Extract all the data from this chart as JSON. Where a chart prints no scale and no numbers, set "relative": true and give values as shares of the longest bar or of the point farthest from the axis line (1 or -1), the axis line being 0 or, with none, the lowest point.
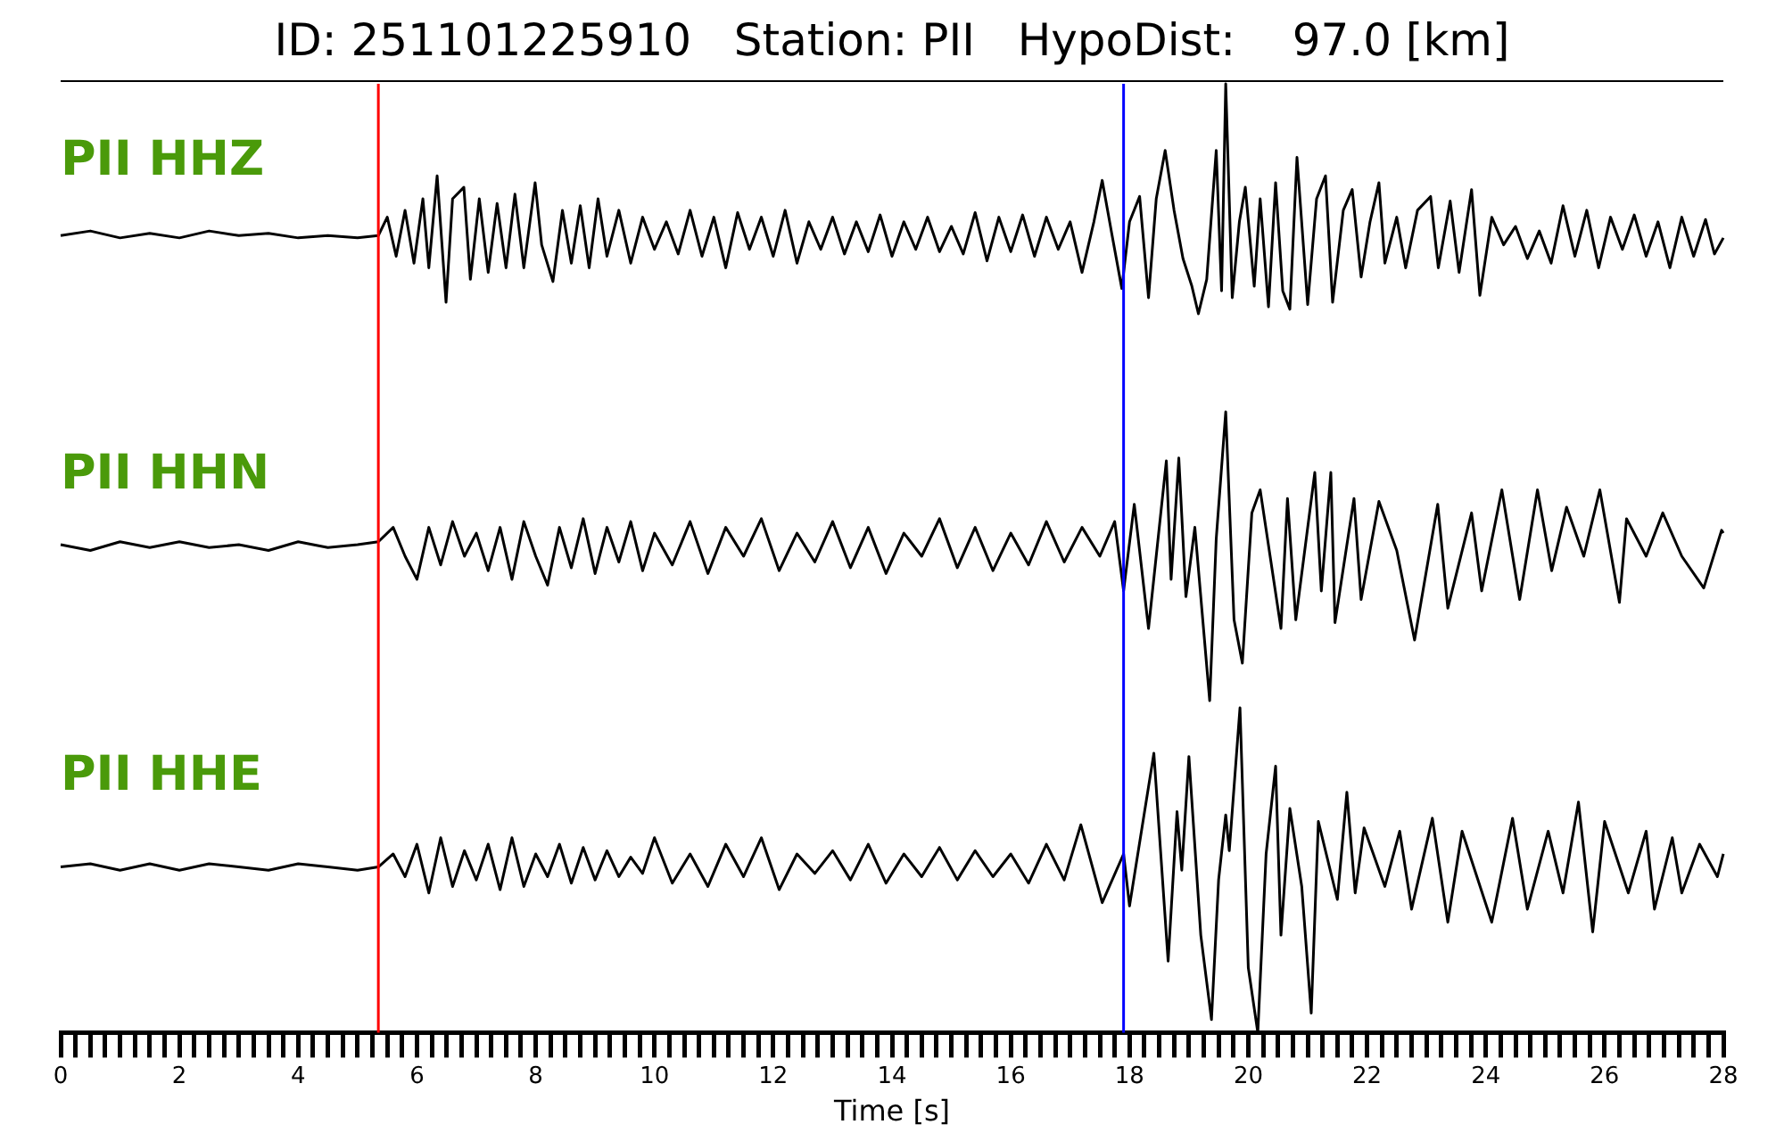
{
  "chart_data": [
    {
      "type": "line",
      "title": "ID: 251101225910   Station: PII   HypoDist:    97.0 [km]",
      "annotations": [
        "PII HHZ"
      ],
      "relative": true,
      "tick_labels": false,
      "xlim": [
        0,
        28
      ],
      "ref_lines": [
        {
          "axis": "x",
          "value": 5.35,
          "color": "#ff0000"
        },
        {
          "axis": "x",
          "value": 17.9,
          "color": "#0000ff"
        }
      ],
      "series": [
        {
          "color": "#000000",
          "x": [
            0,
            0.5,
            1,
            1.5,
            2,
            2.5,
            3,
            3.5,
            4,
            4.5,
            5,
            5.35,
            5.5,
            5.65,
            5.8,
            5.95,
            6.1,
            6.2,
            6.34,
            6.49,
            6.6,
            6.79,
            6.9,
            7.05,
            7.2,
            7.35,
            7.5,
            7.65,
            7.8,
            7.99,
            8.1,
            8.29,
            8.45,
            8.6,
            8.75,
            8.9,
            9.05,
            9.2,
            9.4,
            9.6,
            9.8,
            10,
            10.2,
            10.4,
            10.6,
            10.8,
            11,
            11.2,
            11.4,
            11.6,
            11.8,
            12,
            12.2,
            12.4,
            12.6,
            12.8,
            13,
            13.2,
            13.4,
            13.6,
            13.8,
            14,
            14.2,
            14.4,
            14.6,
            14.8,
            15,
            15.2,
            15.4,
            15.6,
            15.8,
            16,
            16.2,
            16.4,
            16.6,
            16.8,
            17,
            17.2,
            17.4,
            17.54,
            17.7,
            17.87,
            18,
            18.17,
            18.32,
            18.45,
            18.6,
            18.75,
            18.9,
            19.05,
            19.16,
            19.3,
            19.46,
            19.55,
            19.62,
            19.73,
            19.85,
            19.95,
            20.1,
            20.2,
            20.34,
            20.46,
            20.58,
            20.7,
            20.82,
            21,
            21.15,
            21.3,
            21.42,
            21.6,
            21.75,
            21.9,
            22.05,
            22.2,
            22.3,
            22.5,
            22.65,
            22.85,
            23.07,
            23.2,
            23.4,
            23.55,
            23.76,
            23.9,
            24.1,
            24.3,
            24.5,
            24.7,
            24.9,
            25.1,
            25.3,
            25.5,
            25.7,
            25.9,
            26.1,
            26.3,
            26.5,
            26.7,
            26.9,
            27.1,
            27.3,
            27.5,
            27.7,
            27.85,
            28
          ],
          "values": [
            0.34,
            0.36,
            0.33,
            0.35,
            0.33,
            0.36,
            0.34,
            0.35,
            0.33,
            0.34,
            0.33,
            0.34,
            0.42,
            0.25,
            0.45,
            0.22,
            0.5,
            0.2,
            0.6,
            0.05,
            0.5,
            0.55,
            0.15,
            0.5,
            0.18,
            0.48,
            0.2,
            0.52,
            0.2,
            0.57,
            0.3,
            0.14,
            0.45,
            0.22,
            0.47,
            0.2,
            0.5,
            0.25,
            0.45,
            0.22,
            0.42,
            0.28,
            0.4,
            0.26,
            0.45,
            0.25,
            0.42,
            0.2,
            0.44,
            0.28,
            0.42,
            0.25,
            0.45,
            0.22,
            0.4,
            0.28,
            0.42,
            0.26,
            0.4,
            0.27,
            0.43,
            0.25,
            0.4,
            0.28,
            0.42,
            0.27,
            0.38,
            0.26,
            0.44,
            0.23,
            0.42,
            0.27,
            0.43,
            0.25,
            0.42,
            0.28,
            0.4,
            0.18,
            0.4,
            0.58,
            0.35,
            0.11,
            0.4,
            0.51,
            0.07,
            0.5,
            0.71,
            0.45,
            0.24,
            0.12,
            0,
            0.15,
            0.71,
            0.1,
            1,
            0.07,
            0.4,
            0.55,
            0.12,
            0.5,
            0.03,
            0.57,
            0.1,
            0.02,
            0.68,
            0.04,
            0.5,
            0.6,
            0.05,
            0.45,
            0.54,
            0.16,
            0.4,
            0.57,
            0.22,
            0.42,
            0.2,
            0.45,
            0.51,
            0.2,
            0.49,
            0.18,
            0.54,
            0.08,
            0.42,
            0.3,
            0.38,
            0.24,
            0.36,
            0.22,
            0.47,
            0.25,
            0.45,
            0.2,
            0.42,
            0.28,
            0.43,
            0.25,
            0.4,
            0.2,
            0.42,
            0.25,
            0.41,
            0.26,
            0.33
          ]
        }
      ]
    },
    {
      "type": "line",
      "annotations": [
        "PII HHN"
      ],
      "relative": true,
      "tick_labels": false,
      "xlim": [
        0,
        28
      ],
      "ref_lines": [
        {
          "axis": "x",
          "value": 5.35,
          "color": "#ff0000"
        },
        {
          "axis": "x",
          "value": 17.9,
          "color": "#0000ff"
        }
      ],
      "series": [
        {
          "color": "#000000",
          "x": [
            0,
            0.5,
            1,
            1.5,
            2,
            2.5,
            3,
            3.5,
            4,
            4.5,
            5,
            5.35,
            5.6,
            5.8,
            6,
            6.2,
            6.4,
            6.6,
            6.8,
            7,
            7.2,
            7.4,
            7.6,
            7.8,
            8,
            8.2,
            8.4,
            8.6,
            8.8,
            9,
            9.2,
            9.4,
            9.6,
            9.8,
            10,
            10.3,
            10.6,
            10.9,
            11.2,
            11.5,
            11.8,
            12.1,
            12.4,
            12.7,
            13,
            13.3,
            13.6,
            13.9,
            14.2,
            14.5,
            14.8,
            15.1,
            15.4,
            15.7,
            16,
            16.3,
            16.6,
            16.9,
            17.2,
            17.5,
            17.75,
            17.9,
            18.08,
            18.32,
            18.62,
            18.7,
            18.83,
            18.95,
            19.1,
            19.35,
            19.46,
            19.62,
            19.76,
            19.9,
            20.06,
            20.2,
            20.55,
            20.66,
            20.8,
            21.12,
            21.23,
            21.39,
            21.46,
            21.78,
            21.9,
            22.2,
            22.5,
            22.8,
            23.19,
            23.36,
            23.76,
            23.93,
            24.27,
            24.57,
            24.87,
            25.11,
            25.36,
            25.65,
            25.92,
            26.25,
            26.37,
            26.7,
            26.98,
            27.3,
            27.67,
            27.97,
            28
          ],
          "values": [
            0.54,
            0.52,
            0.55,
            0.53,
            0.55,
            0.53,
            0.54,
            0.52,
            0.55,
            0.53,
            0.54,
            0.55,
            0.6,
            0.5,
            0.42,
            0.6,
            0.47,
            0.62,
            0.5,
            0.58,
            0.45,
            0.6,
            0.42,
            0.62,
            0.5,
            0.4,
            0.6,
            0.46,
            0.63,
            0.44,
            0.6,
            0.48,
            0.62,
            0.45,
            0.58,
            0.47,
            0.62,
            0.44,
            0.6,
            0.5,
            0.63,
            0.45,
            0.58,
            0.48,
            0.62,
            0.46,
            0.6,
            0.44,
            0.58,
            0.5,
            0.63,
            0.46,
            0.6,
            0.45,
            0.58,
            0.47,
            0.62,
            0.48,
            0.6,
            0.5,
            0.62,
            0.38,
            0.68,
            0.25,
            0.83,
            0.42,
            0.84,
            0.36,
            0.6,
            0,
            0.56,
            1,
            0.28,
            0.13,
            0.65,
            0.73,
            0.25,
            0.7,
            0.28,
            0.79,
            0.38,
            0.79,
            0.27,
            0.7,
            0.35,
            0.69,
            0.52,
            0.21,
            0.68,
            0.32,
            0.65,
            0.38,
            0.73,
            0.35,
            0.73,
            0.45,
            0.67,
            0.5,
            0.73,
            0.34,
            0.63,
            0.5,
            0.65,
            0.5,
            0.39,
            0.59,
            0.58
          ]
        }
      ]
    },
    {
      "type": "line",
      "annotations": [
        "PII HHE"
      ],
      "relative": true,
      "xlabel": "Time [s]",
      "xlim": [
        0,
        28
      ],
      "xticks": [
        0,
        {
          "value": 0.25,
          "label": null
        },
        {
          "value": 0.5,
          "label": null
        },
        {
          "value": 0.75,
          "label": null
        },
        {
          "value": 1,
          "label": null
        },
        {
          "value": 1.25,
          "label": null
        },
        {
          "value": 1.5,
          "label": null
        },
        {
          "value": 1.75,
          "label": null
        },
        2,
        {
          "value": 2.25,
          "label": null
        },
        {
          "value": 2.5,
          "label": null
        },
        {
          "value": 2.75,
          "label": null
        },
        {
          "value": 3,
          "label": null
        },
        {
          "value": 3.25,
          "label": null
        },
        {
          "value": 3.5,
          "label": null
        },
        {
          "value": 3.75,
          "label": null
        },
        4,
        {
          "value": 4.25,
          "label": null
        },
        {
          "value": 4.5,
          "label": null
        },
        {
          "value": 4.75,
          "label": null
        },
        {
          "value": 5,
          "label": null
        },
        {
          "value": 5.25,
          "label": null
        },
        {
          "value": 5.5,
          "label": null
        },
        {
          "value": 5.75,
          "label": null
        },
        6,
        {
          "value": 6.25,
          "label": null
        },
        {
          "value": 6.5,
          "label": null
        },
        {
          "value": 6.75,
          "label": null
        },
        {
          "value": 7,
          "label": null
        },
        {
          "value": 7.25,
          "label": null
        },
        {
          "value": 7.5,
          "label": null
        },
        {
          "value": 7.75,
          "label": null
        },
        8,
        {
          "value": 8.25,
          "label": null
        },
        {
          "value": 8.5,
          "label": null
        },
        {
          "value": 8.75,
          "label": null
        },
        {
          "value": 9,
          "label": null
        },
        {
          "value": 9.25,
          "label": null
        },
        {
          "value": 9.5,
          "label": null
        },
        {
          "value": 9.75,
          "label": null
        },
        10,
        {
          "value": 10.25,
          "label": null
        },
        {
          "value": 10.5,
          "label": null
        },
        {
          "value": 10.75,
          "label": null
        },
        {
          "value": 11,
          "label": null
        },
        {
          "value": 11.25,
          "label": null
        },
        {
          "value": 11.5,
          "label": null
        },
        {
          "value": 11.75,
          "label": null
        },
        12,
        {
          "value": 12.25,
          "label": null
        },
        {
          "value": 12.5,
          "label": null
        },
        {
          "value": 12.75,
          "label": null
        },
        {
          "value": 13,
          "label": null
        },
        {
          "value": 13.25,
          "label": null
        },
        {
          "value": 13.5,
          "label": null
        },
        {
          "value": 13.75,
          "label": null
        },
        14,
        {
          "value": 14.25,
          "label": null
        },
        {
          "value": 14.5,
          "label": null
        },
        {
          "value": 14.75,
          "label": null
        },
        {
          "value": 15,
          "label": null
        },
        {
          "value": 15.25,
          "label": null
        },
        {
          "value": 15.5,
          "label": null
        },
        {
          "value": 15.75,
          "label": null
        },
        16,
        {
          "value": 16.25,
          "label": null
        },
        {
          "value": 16.5,
          "label": null
        },
        {
          "value": 16.75,
          "label": null
        },
        {
          "value": 17,
          "label": null
        },
        {
          "value": 17.25,
          "label": null
        },
        {
          "value": 17.5,
          "label": null
        },
        {
          "value": 17.75,
          "label": null
        },
        18,
        {
          "value": 18.25,
          "label": null
        },
        {
          "value": 18.5,
          "label": null
        },
        {
          "value": 18.75,
          "label": null
        },
        {
          "value": 19,
          "label": null
        },
        {
          "value": 19.25,
          "label": null
        },
        {
          "value": 19.5,
          "label": null
        },
        {
          "value": 19.75,
          "label": null
        },
        20,
        {
          "value": 20.25,
          "label": null
        },
        {
          "value": 20.5,
          "label": null
        },
        {
          "value": 20.75,
          "label": null
        },
        {
          "value": 21,
          "label": null
        },
        {
          "value": 21.25,
          "label": null
        },
        {
          "value": 21.5,
          "label": null
        },
        {
          "value": 21.75,
          "label": null
        },
        22,
        {
          "value": 22.25,
          "label": null
        },
        {
          "value": 22.5,
          "label": null
        },
        {
          "value": 22.75,
          "label": null
        },
        {
          "value": 23,
          "label": null
        },
        {
          "value": 23.25,
          "label": null
        },
        {
          "value": 23.5,
          "label": null
        },
        {
          "value": 23.75,
          "label": null
        },
        24,
        {
          "value": 24.25,
          "label": null
        },
        {
          "value": 24.5,
          "label": null
        },
        {
          "value": 24.75,
          "label": null
        },
        {
          "value": 25,
          "label": null
        },
        {
          "value": 25.25,
          "label": null
        },
        {
          "value": 25.5,
          "label": null
        },
        {
          "value": 25.75,
          "label": null
        },
        26,
        {
          "value": 26.25,
          "label": null
        },
        {
          "value": 26.5,
          "label": null
        },
        {
          "value": 26.75,
          "label": null
        },
        {
          "value": 27,
          "label": null
        },
        {
          "value": 27.25,
          "label": null
        },
        {
          "value": 27.5,
          "label": null
        },
        {
          "value": 27.75,
          "label": null
        },
        28
      ],
      "ref_lines": [
        {
          "axis": "x",
          "value": 5.35,
          "color": "#ff0000"
        },
        {
          "axis": "x",
          "value": 17.9,
          "color": "#0000ff"
        }
      ],
      "series": [
        {
          "color": "#000000",
          "x": [
            0,
            0.5,
            1,
            1.5,
            2,
            2.5,
            3,
            3.5,
            4,
            4.5,
            5,
            5.35,
            5.6,
            5.8,
            6,
            6.2,
            6.4,
            6.6,
            6.8,
            7,
            7.2,
            7.4,
            7.6,
            7.8,
            8,
            8.2,
            8.4,
            8.6,
            8.8,
            9,
            9.2,
            9.4,
            9.6,
            9.8,
            10,
            10.3,
            10.6,
            10.9,
            11.2,
            11.5,
            11.8,
            12.1,
            12.4,
            12.7,
            13,
            13.3,
            13.6,
            13.9,
            14.2,
            14.5,
            14.8,
            15.1,
            15.4,
            15.7,
            16,
            16.3,
            16.6,
            16.9,
            17.18,
            17.54,
            17.9,
            18,
            18.41,
            18.65,
            18.8,
            18.88,
            19,
            19.2,
            19.38,
            19.5,
            19.62,
            19.68,
            19.86,
            20,
            20.16,
            20.3,
            20.46,
            20.55,
            20.7,
            20.9,
            21.06,
            21.18,
            21.5,
            21.66,
            21.8,
            21.95,
            22.3,
            22.55,
            22.75,
            23.1,
            23.36,
            23.6,
            24.1,
            24.45,
            24.7,
            25.05,
            25.3,
            25.56,
            25.8,
            26,
            26.4,
            26.7,
            26.84,
            27.14,
            27.3,
            27.6,
            27.9,
            28
          ],
          "values": [
            0.51,
            0.52,
            0.5,
            0.52,
            0.5,
            0.52,
            0.51,
            0.5,
            0.52,
            0.51,
            0.5,
            0.51,
            0.55,
            0.48,
            0.58,
            0.43,
            0.6,
            0.45,
            0.56,
            0.47,
            0.58,
            0.44,
            0.6,
            0.45,
            0.55,
            0.48,
            0.58,
            0.46,
            0.57,
            0.47,
            0.56,
            0.48,
            0.54,
            0.49,
            0.6,
            0.46,
            0.55,
            0.45,
            0.58,
            0.48,
            0.6,
            0.44,
            0.55,
            0.49,
            0.56,
            0.47,
            0.58,
            0.46,
            0.55,
            0.48,
            0.57,
            0.47,
            0.56,
            0.48,
            0.55,
            0.46,
            0.58,
            0.47,
            0.64,
            0.4,
            0.55,
            0.39,
            0.86,
            0.22,
            0.68,
            0.5,
            0.85,
            0.3,
            0.04,
            0.47,
            0.67,
            0.56,
            1,
            0.2,
            0,
            0.55,
            0.82,
            0.3,
            0.69,
            0.45,
            0.06,
            0.65,
            0.41,
            0.74,
            0.43,
            0.63,
            0.45,
            0.62,
            0.38,
            0.66,
            0.34,
            0.62,
            0.34,
            0.66,
            0.38,
            0.62,
            0.43,
            0.71,
            0.31,
            0.65,
            0.43,
            0.62,
            0.38,
            0.6,
            0.43,
            0.58,
            0.48,
            0.55
          ]
        }
      ]
    }
  ]
}
